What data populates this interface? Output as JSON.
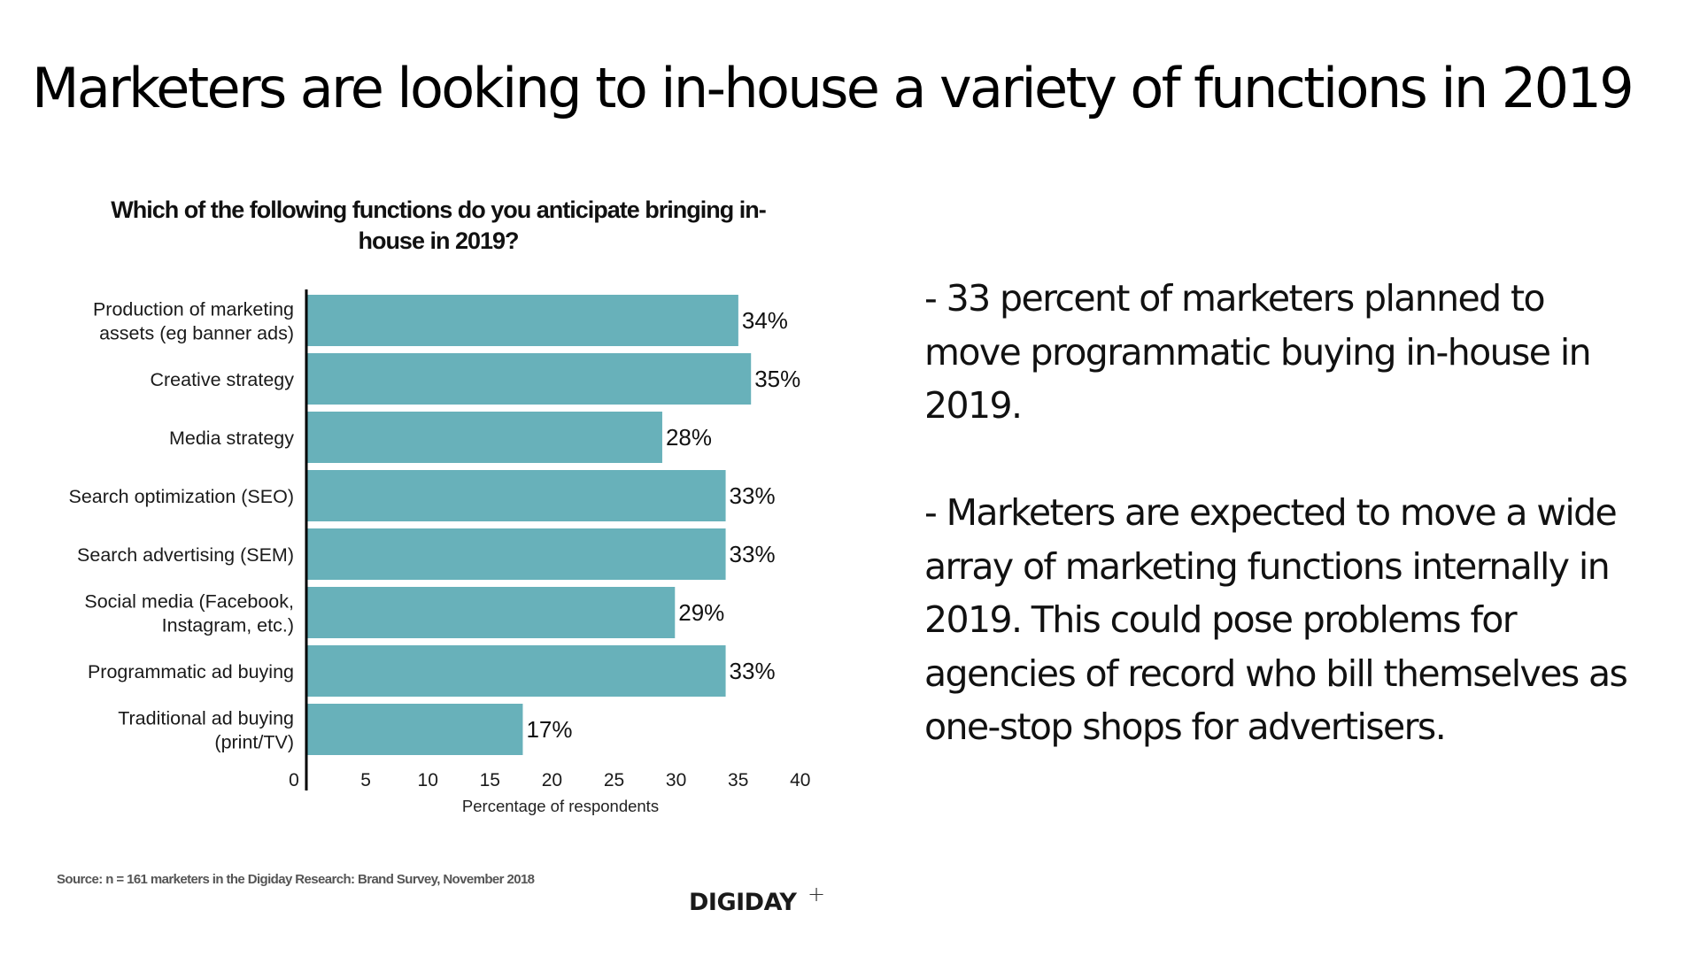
{
  "page": {
    "title": "Marketers are looking to in-house a variety of functions in 2019",
    "bullets": [
      "- 33 percent of marketers planned to move programmatic buying in-house in 2019.",
      "- Marketers are expected to move a wide array of marketing functions internally in 2019. This could pose problems for agencies of record who bill themselves as one-stop shops for advertisers."
    ],
    "source": "Source: n = 161 marketers in the Digiday Research: Brand Survey, November 2018",
    "logo": {
      "text": "DIGIDAY",
      "suffix": "+"
    }
  },
  "colors": {
    "bar": "#68b1ba",
    "axis": "#000000",
    "text": "#111111",
    "source_text": "#555555"
  },
  "chart_data": {
    "type": "bar",
    "orientation": "horizontal",
    "title": "Which of the following functions do you anticipate bringing in-house in 2019?",
    "title_lines": [
      "Which of the following functions do you anticipate bringing in-",
      "house in 2019?"
    ],
    "xlabel": "Percentage of respondents",
    "ylabel": "",
    "categories": [
      [
        "Production of marketing",
        "assets (eg banner ads)"
      ],
      [
        "Creative strategy"
      ],
      [
        "Media strategy"
      ],
      [
        "Search optimization (SEO)"
      ],
      [
        "Search advertising (SEM)"
      ],
      [
        "Social media (Facebook,",
        "Instagram, etc.)"
      ],
      [
        "Programmatic ad buying"
      ],
      [
        "Traditional ad buying",
        "(print/TV)"
      ]
    ],
    "values": [
      34,
      35,
      28,
      33,
      33,
      29,
      33,
      17
    ],
    "value_labels": [
      "34%",
      "35%",
      "28%",
      "33%",
      "33%",
      "29%",
      "33%",
      "17%"
    ],
    "xlim": [
      0,
      40
    ],
    "xticks": [
      0,
      5,
      10,
      15,
      20,
      25,
      30,
      35,
      40
    ],
    "xtick_labels": [
      "0",
      "5",
      "10",
      "15",
      "20",
      "25",
      "30",
      "35",
      "40"
    ],
    "grid": false,
    "legend": "none"
  }
}
